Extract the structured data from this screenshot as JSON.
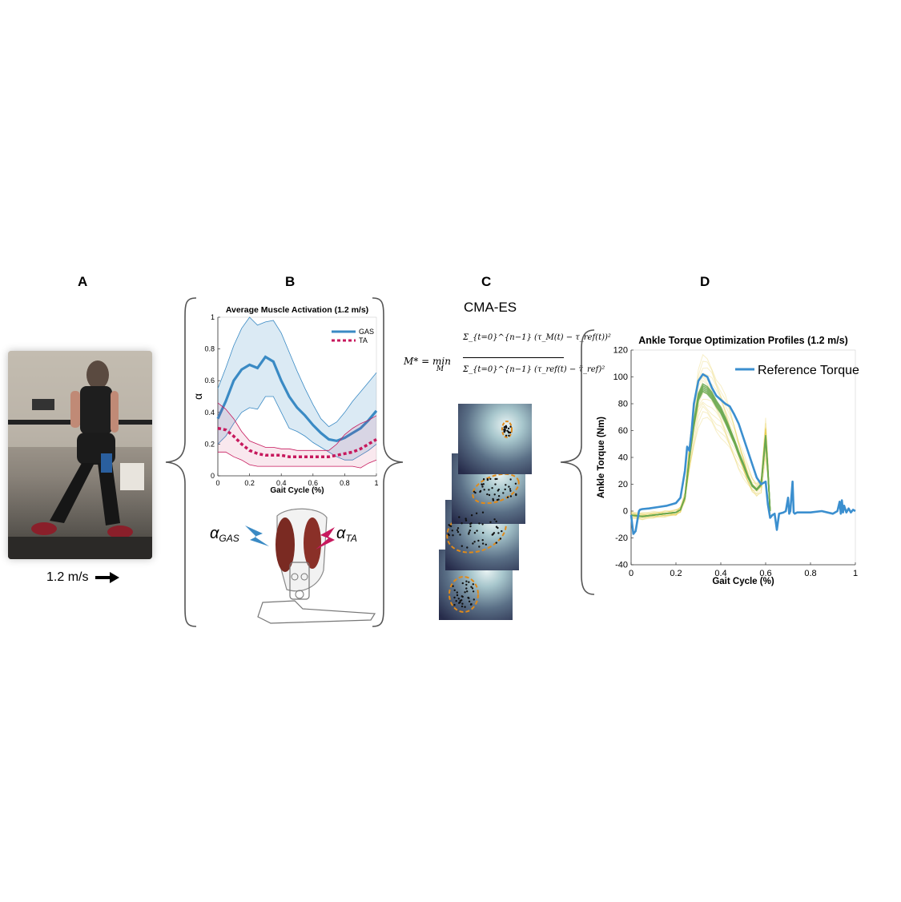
{
  "panels": {
    "a": "A",
    "b": "B",
    "c": "C",
    "d": "D"
  },
  "photo": {
    "speed_label": "1.2 m/s"
  },
  "colors": {
    "gas": "#3a8ac4",
    "ta": "#c7195d",
    "green": "#6aa84f",
    "yellow": "#e0c020",
    "blue": "#3b8fcf"
  },
  "equation": {
    "lhs": "M* = min",
    "sub": "M",
    "numerator": "Σ_{t=0}^{n−1} (τ_M(t) − τ_ref(t))²",
    "denominator": "Σ_{t=0}^{n−1} (τ_ref(t) − τ̄_ref)²"
  },
  "cma": {
    "title": "CMA-ES"
  },
  "muscle": {
    "alpha_gas": "α",
    "alpha_gas_sub": "GAS",
    "alpha_ta": "α",
    "alpha_ta_sub": "TA"
  },
  "chart_data": [
    {
      "type": "line",
      "title": "Average Muscle Activation (1.2 m/s)",
      "xlabel": "Gait Cycle (%)",
      "ylabel": "α",
      "xlim": [
        0,
        1
      ],
      "ylim": [
        0,
        1
      ],
      "xticks": [
        "0",
        "0.2",
        "0.4",
        "0.6",
        "0.8",
        "1"
      ],
      "yticks": [
        "0",
        "0.2",
        "0.4",
        "0.6",
        "0.8",
        "1"
      ],
      "legend_position": "top-right",
      "series": [
        {
          "name": "GAS",
          "x": [
            0,
            0.05,
            0.1,
            0.15,
            0.2,
            0.25,
            0.3,
            0.35,
            0.4,
            0.45,
            0.5,
            0.55,
            0.6,
            0.65,
            0.7,
            0.75,
            0.8,
            0.85,
            0.9,
            0.95,
            1
          ],
          "mean": [
            0.36,
            0.47,
            0.6,
            0.67,
            0.7,
            0.68,
            0.75,
            0.72,
            0.6,
            0.5,
            0.43,
            0.38,
            0.32,
            0.27,
            0.23,
            0.22,
            0.24,
            0.27,
            0.3,
            0.35,
            0.41
          ],
          "upper": [
            0.55,
            0.68,
            0.82,
            0.93,
            1.0,
            0.95,
            0.97,
            0.98,
            0.9,
            0.78,
            0.66,
            0.55,
            0.45,
            0.36,
            0.31,
            0.34,
            0.4,
            0.47,
            0.53,
            0.59,
            0.65
          ],
          "lower": [
            0.2,
            0.25,
            0.33,
            0.4,
            0.43,
            0.42,
            0.5,
            0.5,
            0.4,
            0.3,
            0.28,
            0.25,
            0.21,
            0.18,
            0.15,
            0.12,
            0.1,
            0.1,
            0.13,
            0.16,
            0.2
          ]
        },
        {
          "name": "TA",
          "x": [
            0,
            0.05,
            0.1,
            0.15,
            0.2,
            0.25,
            0.3,
            0.35,
            0.4,
            0.45,
            0.5,
            0.55,
            0.6,
            0.65,
            0.7,
            0.75,
            0.8,
            0.85,
            0.9,
            0.95,
            1
          ],
          "mean": [
            0.3,
            0.29,
            0.25,
            0.2,
            0.16,
            0.14,
            0.13,
            0.13,
            0.13,
            0.12,
            0.12,
            0.12,
            0.12,
            0.12,
            0.12,
            0.13,
            0.14,
            0.15,
            0.17,
            0.2,
            0.23
          ],
          "upper": [
            0.46,
            0.42,
            0.36,
            0.28,
            0.22,
            0.2,
            0.18,
            0.18,
            0.17,
            0.17,
            0.16,
            0.16,
            0.16,
            0.16,
            0.16,
            0.2,
            0.26,
            0.3,
            0.33,
            0.35,
            0.38
          ],
          "lower": [
            0.15,
            0.15,
            0.12,
            0.1,
            0.07,
            0.06,
            0.06,
            0.06,
            0.06,
            0.06,
            0.06,
            0.06,
            0.06,
            0.06,
            0.06,
            0.06,
            0.06,
            0.06,
            0.05,
            0.08,
            0.1
          ]
        }
      ]
    },
    {
      "type": "line",
      "title": "Ankle Torque Optimization Profiles (1.2 m/s)",
      "xlabel": "Gait Cycle (%)",
      "ylabel": "Ankle Torque (Nm)",
      "xlim": [
        0,
        1
      ],
      "ylim": [
        -40,
        120
      ],
      "xticks": [
        "0",
        "0.2",
        "0.4",
        "0.6",
        "0.8",
        "1"
      ],
      "yticks": [
        "-40",
        "-20",
        "0",
        "20",
        "40",
        "60",
        "80",
        "100",
        "120"
      ],
      "legend_position": "top-right",
      "series": [
        {
          "name": "Reference Torque",
          "x": [
            0,
            0.01,
            0.02,
            0.03,
            0.035,
            0.04,
            0.05,
            0.08,
            0.12,
            0.16,
            0.2,
            0.22,
            0.24,
            0.25,
            0.26,
            0.27,
            0.28,
            0.3,
            0.32,
            0.34,
            0.36,
            0.38,
            0.4,
            0.42,
            0.44,
            0.46,
            0.48,
            0.5,
            0.52,
            0.54,
            0.56,
            0.58,
            0.6,
            0.61,
            0.62,
            0.63,
            0.64,
            0.65,
            0.66,
            0.68,
            0.69,
            0.7,
            0.705,
            0.71,
            0.72,
            0.725,
            0.73,
            0.74,
            0.8,
            0.85,
            0.9,
            0.92,
            0.93,
            0.935,
            0.94,
            0.945,
            0.95,
            0.96,
            0.97,
            0.98,
            0.99,
            1.0
          ],
          "y": [
            -3,
            -17,
            -15,
            -5,
            0,
            1,
            1.5,
            2,
            3,
            4,
            6,
            10,
            30,
            48,
            45,
            60,
            80,
            97,
            102,
            100,
            92,
            86,
            83,
            80,
            78,
            72,
            65,
            55,
            45,
            35,
            25,
            20,
            22,
            5,
            -5,
            -3,
            -2,
            -14,
            -2,
            -1,
            0,
            10,
            -2,
            0,
            22,
            -1,
            -2,
            -1,
            -1,
            0,
            -2,
            0,
            7,
            -2,
            8,
            -1,
            4,
            -1,
            2,
            -1,
            1,
            0
          ]
        },
        {
          "name": "",
          "x": [
            0,
            0.05,
            0.1,
            0.15,
            0.2,
            0.22,
            0.24,
            0.26,
            0.28,
            0.3,
            0.32,
            0.34,
            0.36,
            0.38,
            0.4,
            0.42,
            0.44,
            0.46,
            0.48,
            0.5,
            0.52,
            0.54,
            0.56,
            0.58,
            0.6,
            0.61,
            0.62
          ],
          "y": [
            -3,
            -4,
            -3,
            -2,
            -1,
            1,
            10,
            40,
            65,
            85,
            92,
            90,
            86,
            80,
            75,
            68,
            60,
            52,
            43,
            35,
            26,
            19,
            16,
            20,
            55,
            30,
            0
          ]
        }
      ]
    }
  ]
}
